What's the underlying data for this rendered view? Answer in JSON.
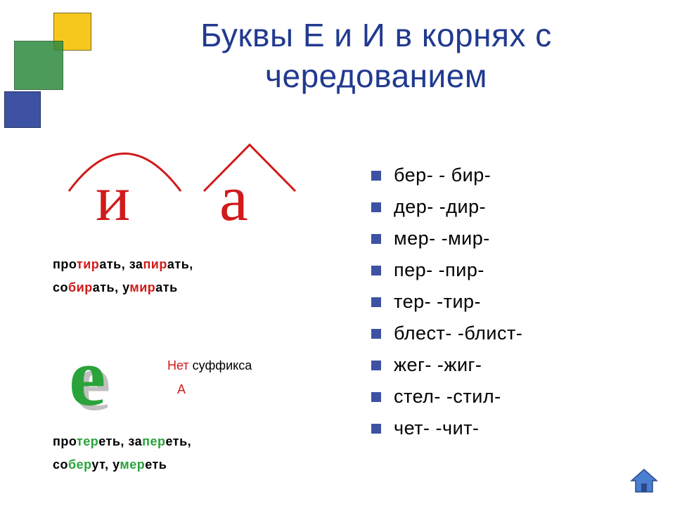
{
  "title": "Буквы Е и И в корнях с чередованием",
  "colors": {
    "title": "#213a8f",
    "bullet": "#3d52a3",
    "red": "#d11a1a",
    "green": "#2aa33b",
    "yellow_box": "#f6c81e",
    "blue_box": "#3d52a3",
    "green_box": "#2e8a3f",
    "e_shadow": "#c0c0c0",
    "background": "#ffffff"
  },
  "arcs": {
    "stroke": "#d11a1a",
    "stroke_width": 3
  },
  "letters": {
    "i": "и",
    "a": "а",
    "e": "е"
  },
  "examples_with_a": {
    "line1_parts": [
      "про",
      "тир",
      "ать, за",
      "пир",
      "ать,"
    ],
    "line2_parts": [
      "со",
      "бир",
      "ать, у",
      "мир",
      "ать"
    ]
  },
  "condition": {
    "text_prefix": "Нет",
    "text_rest": " суффикса",
    "suffix_letter": "А"
  },
  "examples_without_a": {
    "line1_parts": [
      "про",
      "тер",
      "еть, за",
      "пер",
      "еть,"
    ],
    "line2_parts": [
      "со",
      "бер",
      "ут, у",
      "мер",
      "еть"
    ]
  },
  "root_pairs": [
    "бер- - бир-",
    "дер- -дир-",
    "мер- -мир-",
    "пер- -пир-",
    "тер- -тир-",
    "блест- -блист-",
    "жег- -жиг-",
    "стел- -стил-",
    "чет- -чит-"
  ],
  "home_icon_colors": {
    "fill": "#4a7ed1",
    "stroke": "#2a4a8a"
  }
}
